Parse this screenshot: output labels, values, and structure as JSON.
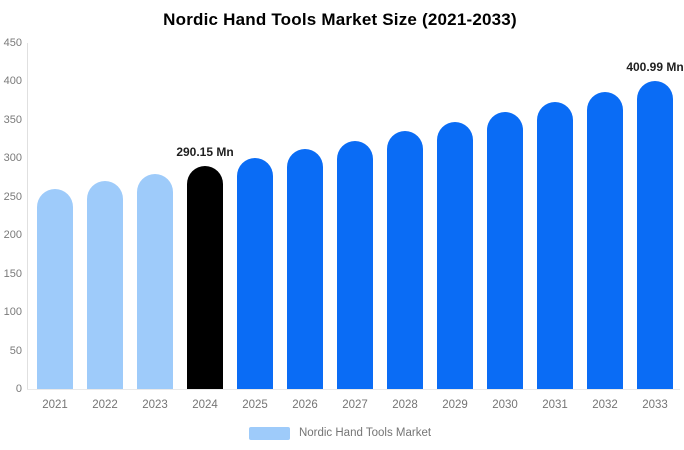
{
  "chart_data": {
    "type": "bar",
    "title": "Nordic Hand Tools Market Size (2021-2033)",
    "categories": [
      "2021",
      "2022",
      "2023",
      "2024",
      "2025",
      "2026",
      "2027",
      "2028",
      "2029",
      "2030",
      "2031",
      "2032",
      "2033"
    ],
    "values": [
      260.49,
      270.03,
      279.91,
      290.15,
      300.77,
      311.78,
      323.19,
      335.02,
      347.28,
      359.99,
      373.17,
      386.83,
      400.99
    ],
    "bar_color_roles": [
      "light",
      "light",
      "light",
      "highlight",
      "default",
      "default",
      "default",
      "default",
      "default",
      "default",
      "default",
      "default",
      "default"
    ],
    "colors": {
      "default": "#0a6cf5",
      "light": "#9ecbfa",
      "highlight": "#000000",
      "axis_text": "#7a7a7a",
      "value_label_text": "#1f1f1f",
      "axis_line": "#e0e0e0"
    },
    "annotations": [
      {
        "category": "2024",
        "text": "290.15 Mn"
      },
      {
        "category": "2033",
        "text": "400.99 Mn"
      }
    ],
    "xlabel": "",
    "ylabel": "",
    "ylim": [
      0,
      450
    ],
    "ytick_step": 50,
    "yticks": [
      "0",
      "50",
      "100",
      "150",
      "200",
      "250",
      "300",
      "350",
      "400",
      "450"
    ],
    "grid": false,
    "legend": {
      "label": "Nordic Hand Tools Market",
      "swatch_color": "#9ecbfa",
      "position": "bottom"
    }
  }
}
